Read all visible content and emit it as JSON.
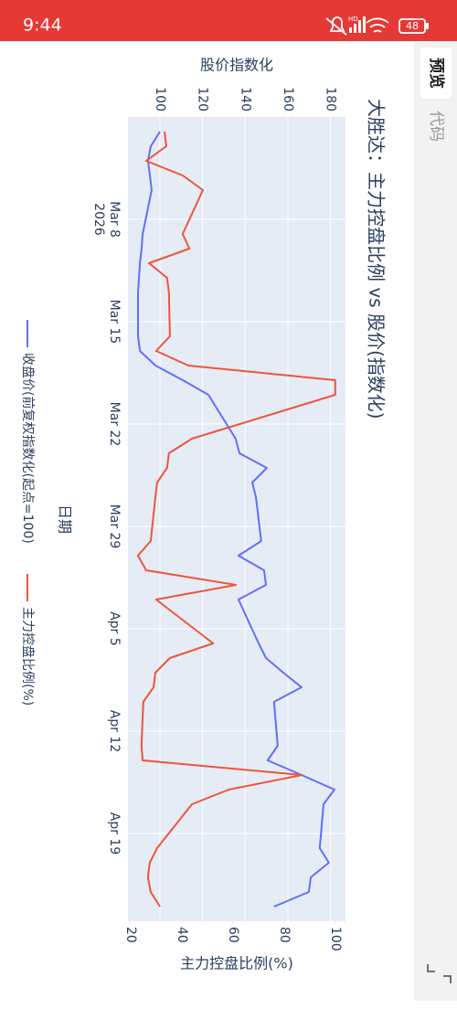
{
  "status_bar": {
    "time": "9:44",
    "hd": "HD",
    "battery": "48"
  },
  "tabs": [
    "预览",
    "代码"
  ],
  "chart_data": {
    "type": "line",
    "title": "大胜达：主力控盘比例 vs 股价(指数化)",
    "x_label": "日期",
    "y_label": "股价指数化",
    "y2_label": "主力控盘比例(%)",
    "x": [
      "2026-03-02",
      "2026-03-03",
      "2026-03-04",
      "2026-03-05",
      "2026-03-06",
      "2026-03-09",
      "2026-03-10",
      "2026-03-11",
      "2026-03-12",
      "2026-03-13",
      "2026-03-16",
      "2026-03-17",
      "2026-03-18",
      "2026-03-19",
      "2026-03-20",
      "2026-03-23",
      "2026-03-24",
      "2026-03-25",
      "2026-03-26",
      "2026-03-27",
      "2026-03-30",
      "2026-03-31",
      "2026-04-01",
      "2026-04-02",
      "2026-04-03",
      "2026-04-06",
      "2026-04-07",
      "2026-04-08",
      "2026-04-09",
      "2026-04-10",
      "2026-04-13",
      "2026-04-14",
      "2026-04-15",
      "2026-04-16",
      "2026-04-17",
      "2026-04-20",
      "2026-04-21",
      "2026-04-22",
      "2026-04-23",
      "2026-04-24"
    ],
    "xlim": [
      "2026-03-01",
      "2026-04-25"
    ],
    "xticks": [
      {
        "value": "2026-03-08",
        "label": "Mar 8\n2026"
      },
      {
        "value": "2026-03-15",
        "label": "Mar 15"
      },
      {
        "value": "2026-03-22",
        "label": "Mar 22"
      },
      {
        "value": "2026-03-29",
        "label": "Mar 29"
      },
      {
        "value": "2026-04-05",
        "label": "Apr 5"
      },
      {
        "value": "2026-04-12",
        "label": "Apr 12"
      },
      {
        "value": "2026-04-19",
        "label": "Apr 19"
      }
    ],
    "ylim": [
      85,
      187
    ],
    "yticks": [
      100,
      120,
      140,
      160,
      180
    ],
    "y2lim": [
      19,
      104
    ],
    "y2ticks": [
      20,
      40,
      60,
      80,
      100
    ],
    "grid": true,
    "legend": "bottom",
    "series": [
      {
        "name": "收盘价(前复权指数化(起点=100)",
        "color": "#636efa",
        "axis": "y",
        "values": [
          100,
          95.7,
          94.4,
          95.3,
          96.1,
          91.9,
          91.4,
          90.6,
          90.2,
          89.7,
          89.7,
          90.6,
          97.9,
          110.7,
          122.7,
          135.5,
          137.3,
          150.1,
          143.3,
          145,
          147.5,
          136.8,
          148.8,
          149.7,
          136.8,
          146.3,
          149.7,
          157.8,
          166.4,
          153.5,
          155.2,
          150.5,
          166.4,
          181.8,
          176.7,
          174.9,
          179.2,
          170.7,
          169.8,
          153.5
        ]
      },
      {
        "name": "主力控盘比例(%)",
        "color": "#ef553b",
        "axis": "y2",
        "values": [
          33.3,
          34,
          26.1,
          40.4,
          48.3,
          40.4,
          43,
          27.2,
          34.3,
          35,
          35.4,
          30,
          42.6,
          100,
          100,
          44,
          35,
          34.3,
          30.4,
          29.7,
          27.9,
          22.9,
          26.1,
          61.2,
          30,
          52.3,
          35.4,
          29.7,
          29,
          25,
          24.3,
          24.7,
          87,
          58.4,
          44,
          30.4,
          27.5,
          26.8,
          27.9,
          31.5
        ]
      }
    ]
  }
}
